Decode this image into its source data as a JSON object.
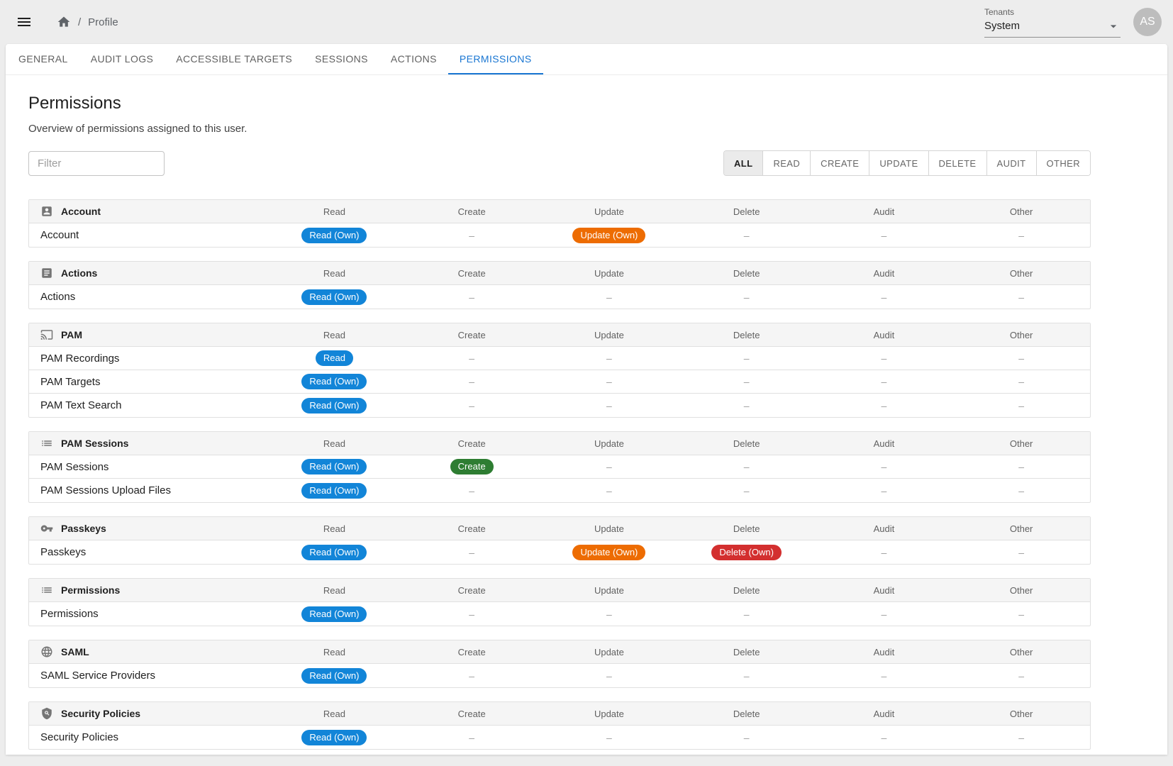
{
  "header": {
    "breadcrumb_separator": "/",
    "breadcrumb": "Profile",
    "tenants_label": "Tenants",
    "tenant_value": "System",
    "avatar_initials": "AS"
  },
  "tabs": [
    {
      "label": "GENERAL",
      "active": false
    },
    {
      "label": "AUDIT LOGS",
      "active": false
    },
    {
      "label": "ACCESSIBLE TARGETS",
      "active": false
    },
    {
      "label": "SESSIONS",
      "active": false
    },
    {
      "label": "ACTIONS",
      "active": false
    },
    {
      "label": "PERMISSIONS",
      "active": true
    }
  ],
  "page": {
    "title": "Permissions",
    "subtitle": "Overview of permissions assigned to this user.",
    "filter_placeholder": "Filter"
  },
  "filter_buttons": [
    {
      "label": "ALL",
      "selected": true
    },
    {
      "label": "READ",
      "selected": false
    },
    {
      "label": "CREATE",
      "selected": false
    },
    {
      "label": "UPDATE",
      "selected": false
    },
    {
      "label": "DELETE",
      "selected": false
    },
    {
      "label": "AUDIT",
      "selected": false
    },
    {
      "label": "OTHER",
      "selected": false
    }
  ],
  "columns": [
    "Read",
    "Create",
    "Update",
    "Delete",
    "Audit",
    "Other"
  ],
  "empty_cell": "–",
  "colors": {
    "accent": "#1976d2",
    "badge_read": "#1285d8",
    "badge_create": "#2e7d32",
    "badge_update": "#ed6c02",
    "badge_delete": "#d32f2f",
    "section_header_bg": "#f5f5f5",
    "icon_gray": "#757575"
  },
  "sections": [
    {
      "name": "Account",
      "icon": "account-box-icon",
      "rows": [
        {
          "label": "Account",
          "badges": [
            "Read (Own)",
            null,
            "Update (Own)",
            null,
            null,
            null
          ]
        }
      ]
    },
    {
      "name": "Actions",
      "icon": "article-icon",
      "rows": [
        {
          "label": "Actions",
          "badges": [
            "Read (Own)",
            null,
            null,
            null,
            null,
            null
          ]
        }
      ]
    },
    {
      "name": "PAM",
      "icon": "cast-screen-icon",
      "rows": [
        {
          "label": "PAM Recordings",
          "badges": [
            "Read",
            null,
            null,
            null,
            null,
            null
          ]
        },
        {
          "label": "PAM Targets",
          "badges": [
            "Read (Own)",
            null,
            null,
            null,
            null,
            null
          ]
        },
        {
          "label": "PAM Text Search",
          "badges": [
            "Read (Own)",
            null,
            null,
            null,
            null,
            null
          ]
        }
      ]
    },
    {
      "name": "PAM Sessions",
      "icon": "list-icon",
      "rows": [
        {
          "label": "PAM Sessions",
          "badges": [
            "Read (Own)",
            "Create",
            null,
            null,
            null,
            null
          ]
        },
        {
          "label": "PAM Sessions Upload Files",
          "badges": [
            "Read (Own)",
            null,
            null,
            null,
            null,
            null
          ]
        }
      ]
    },
    {
      "name": "Passkeys",
      "icon": "key-icon",
      "rows": [
        {
          "label": "Passkeys",
          "badges": [
            "Read (Own)",
            null,
            "Update (Own)",
            "Delete (Own)",
            null,
            null
          ]
        }
      ]
    },
    {
      "name": "Permissions",
      "icon": "list-icon",
      "rows": [
        {
          "label": "Permissions",
          "badges": [
            "Read (Own)",
            null,
            null,
            null,
            null,
            null
          ]
        }
      ]
    },
    {
      "name": "SAML",
      "icon": "globe-icon",
      "rows": [
        {
          "label": "SAML Service Providers",
          "badges": [
            "Read (Own)",
            null,
            null,
            null,
            null,
            null
          ]
        }
      ]
    },
    {
      "name": "Security Policies",
      "icon": "shield-policy-icon",
      "rows": [
        {
          "label": "Security Policies",
          "badges": [
            "Read (Own)",
            null,
            null,
            null,
            null,
            null
          ]
        }
      ]
    }
  ]
}
